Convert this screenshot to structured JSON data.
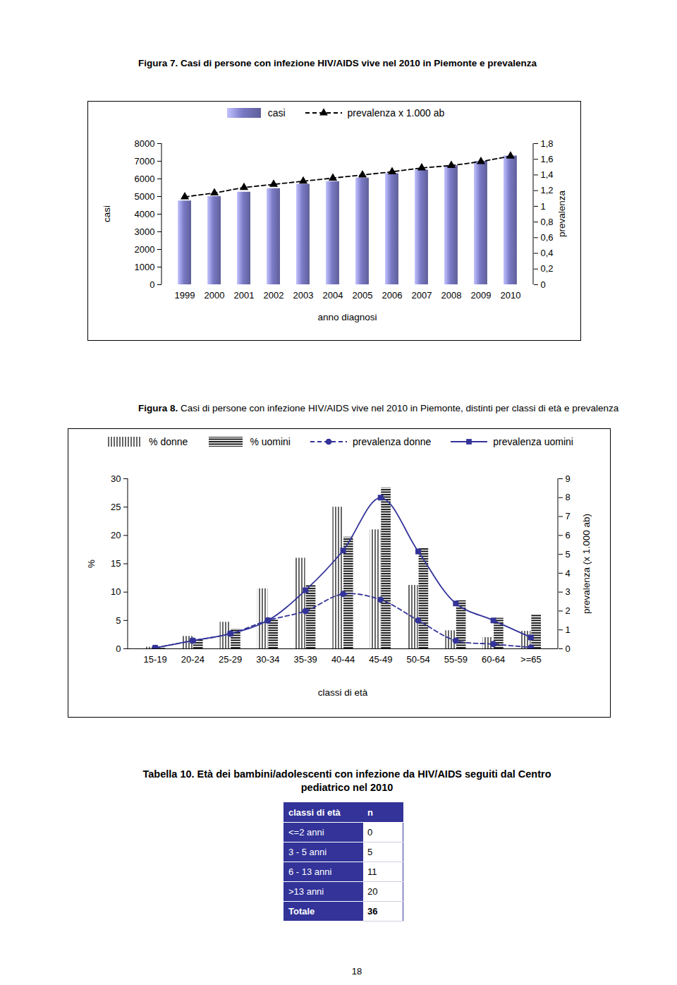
{
  "chart_data": [
    {
      "type": "bar",
      "title": "Figura 7. Casi di persone con infezione HIV/AIDS vive nel 2010 in Piemonte e prevalenza",
      "x_label": "anno diagnosi",
      "y_label": "casi",
      "y2_label": "prevalenza",
      "categories": [
        "1999",
        "2000",
        "2001",
        "2002",
        "2003",
        "2004",
        "2005",
        "2006",
        "2007",
        "2008",
        "2009",
        "2010"
      ],
      "series": [
        {
          "name": "casi",
          "type": "bar",
          "color": "#7a7ac6",
          "values": [
            4750,
            5000,
            5250,
            5450,
            5700,
            5850,
            6050,
            6300,
            6500,
            6750,
            7000,
            7300
          ]
        },
        {
          "name": "prevalenza x 1.000 ab",
          "type": "line",
          "axis": "y2",
          "color": "#000000",
          "marker": "triangle",
          "line_style": "dashed",
          "values": [
            1.12,
            1.17,
            1.24,
            1.28,
            1.32,
            1.36,
            1.4,
            1.44,
            1.49,
            1.52,
            1.57,
            1.64
          ]
        }
      ],
      "ylim": [
        0,
        8000
      ],
      "yticks": [
        0,
        1000,
        2000,
        3000,
        4000,
        5000,
        6000,
        7000,
        8000
      ],
      "y2lim": [
        0,
        1.8
      ],
      "y2ticks": [
        0,
        {
          "value": 0.2,
          "label": "0,2"
        },
        {
          "value": 0.4,
          "label": "0,4"
        },
        {
          "value": 0.6,
          "label": "0,6"
        },
        {
          "value": 0.8,
          "label": "0,8"
        },
        1,
        {
          "value": 1.2,
          "label": "1,2"
        },
        {
          "value": 1.4,
          "label": "1,4"
        },
        {
          "value": 1.6,
          "label": "1,6"
        },
        {
          "value": 1.8,
          "label": "1,8"
        }
      ],
      "legend": "top"
    },
    {
      "type": "bar",
      "title": "Figura 8. Casi di persone con infezione HIV/AIDS vive nel 2010 in Piemonte, distinti per classi di età e prevalenza",
      "x_label": "classi di età",
      "y_label": "%",
      "y2_label": "prevalenza (x 1.000 ab)",
      "categories": [
        "15-19",
        "20-24",
        "25-29",
        "30-34",
        "35-39",
        "40-44",
        "45-49",
        "50-54",
        "55-59",
        "60-64",
        ">=65"
      ],
      "series": [
        {
          "name": "% donne",
          "type": "bar",
          "color": "#000000",
          "values": [
            0.3,
            2.2,
            4.7,
            10.6,
            16,
            25,
            21,
            11.2,
            3.2,
            2,
            3.1
          ]
        },
        {
          "name": "% uomini",
          "type": "bar",
          "color": "#000000",
          "values": [
            0.1,
            1.6,
            3.5,
            5.1,
            11.2,
            19.7,
            28.4,
            17.8,
            8.5,
            5.4,
            6
          ]
        },
        {
          "name": "prevalenza donne",
          "type": "line",
          "axis": "y2",
          "color": "#333399",
          "marker": "circle",
          "line_style": "dashed",
          "values": [
            0.05,
            0.43,
            0.8,
            1.5,
            2,
            2.9,
            2.6,
            1.5,
            0.43,
            0.25,
            0.07
          ]
        },
        {
          "name": "prevalenza uomini",
          "type": "line",
          "axis": "y2",
          "color": "#333399",
          "marker": "square",
          "line_style": "solid",
          "values": [
            0.05,
            0.43,
            0.8,
            1.5,
            3.1,
            5.2,
            8,
            5.15,
            2.4,
            1.5,
            0.6
          ]
        }
      ],
      "ylim": [
        0,
        30
      ],
      "yticks": [
        0,
        5,
        10,
        15,
        20,
        25,
        30
      ],
      "y2lim": [
        0,
        9
      ],
      "y2ticks": [
        0,
        1,
        2,
        3,
        4,
        5,
        6,
        7,
        8,
        9
      ],
      "legend": "top"
    }
  ],
  "table": {
    "title": "Tabella 10. Età dei bambini/adolescenti con infezione da HIV/AIDS seguiti dal Centro pediatrico nel 2010",
    "header": [
      "classi di età",
      "n"
    ],
    "rows": [
      [
        "<=2 anni",
        0
      ],
      [
        "3 - 5 anni",
        5
      ],
      [
        "6 - 13 anni",
        11
      ],
      [
        ">13 anni",
        20
      ]
    ],
    "total": [
      "Totale",
      36
    ]
  },
  "page_number": "18"
}
